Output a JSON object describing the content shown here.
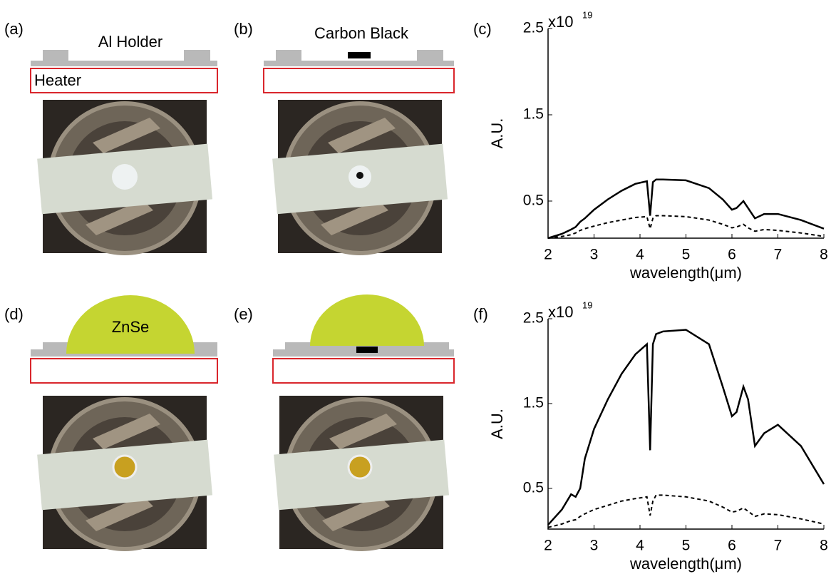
{
  "panels": {
    "a": {
      "label": "(a)",
      "holder": "Al Holder",
      "heater": "Heater"
    },
    "b": {
      "label": "(b)",
      "sample": "Carbon Black"
    },
    "d": {
      "label": "(d)",
      "lens": "ZnSe"
    },
    "e": {
      "label": "(e)"
    }
  },
  "chart_data": [
    {
      "type": "line",
      "panel_label": "(c)",
      "y_multiplier": {
        "base": "x10",
        "exponent": "19"
      },
      "ylabel": "A.U.",
      "xlabel": "wavelength(μm)",
      "x": [
        2,
        2.3,
        2.5,
        2.6,
        2.7,
        2.8,
        3,
        3.3,
        3.6,
        3.9,
        4.15,
        4.22,
        4.28,
        4.35,
        4.5,
        5,
        5.5,
        5.8,
        6,
        6.1,
        6.25,
        6.35,
        6.5,
        6.7,
        7,
        7.5,
        8
      ],
      "series": [
        {
          "color": "#000000",
          "dash": "solid",
          "values": [
            0.07,
            0.12,
            0.17,
            0.2,
            0.26,
            0.3,
            0.4,
            0.52,
            0.62,
            0.7,
            0.73,
            0.33,
            0.72,
            0.75,
            0.75,
            0.74,
            0.65,
            0.52,
            0.4,
            0.42,
            0.5,
            0.42,
            0.3,
            0.35,
            0.35,
            0.28,
            0.18
          ]
        },
        {
          "color": "#000000",
          "dash": "dashed",
          "values": [
            0.07,
            0.09,
            0.11,
            0.13,
            0.16,
            0.18,
            0.21,
            0.25,
            0.28,
            0.31,
            0.32,
            0.18,
            0.3,
            0.33,
            0.33,
            0.32,
            0.28,
            0.23,
            0.19,
            0.2,
            0.23,
            0.19,
            0.15,
            0.17,
            0.16,
            0.13,
            0.09
          ]
        }
      ],
      "xlim": [
        2,
        8
      ],
      "xticks": [
        2,
        3,
        4,
        5,
        6,
        7,
        8
      ],
      "ylim": [
        0.07,
        2.5
      ],
      "yticks": [
        0.5,
        1.5,
        2.5
      ]
    },
    {
      "type": "line",
      "panel_label": "(f)",
      "y_multiplier": {
        "base": "x10",
        "exponent": "19"
      },
      "ylabel": "A.U.",
      "xlabel": "wavelength(μm)",
      "x": [
        2,
        2.3,
        2.5,
        2.6,
        2.7,
        2.8,
        3,
        3.3,
        3.6,
        3.9,
        4.15,
        4.22,
        4.28,
        4.35,
        4.5,
        5,
        5.5,
        5.8,
        6,
        6.1,
        6.25,
        6.35,
        6.5,
        6.7,
        7,
        7.5,
        8
      ],
      "series": [
        {
          "color": "#000000",
          "dash": "solid",
          "values": [
            0.07,
            0.25,
            0.43,
            0.4,
            0.5,
            0.85,
            1.2,
            1.55,
            1.85,
            2.08,
            2.2,
            0.95,
            2.2,
            2.32,
            2.35,
            2.37,
            2.2,
            1.7,
            1.35,
            1.4,
            1.7,
            1.55,
            1.0,
            1.15,
            1.25,
            1.0,
            0.55
          ]
        },
        {
          "color": "#000000",
          "dash": "dashed",
          "values": [
            0.04,
            0.08,
            0.12,
            0.13,
            0.17,
            0.2,
            0.25,
            0.3,
            0.35,
            0.38,
            0.4,
            0.18,
            0.35,
            0.42,
            0.42,
            0.4,
            0.35,
            0.28,
            0.22,
            0.23,
            0.27,
            0.23,
            0.17,
            0.2,
            0.19,
            0.14,
            0.08
          ]
        }
      ],
      "xlim": [
        2,
        8
      ],
      "xticks": [
        2,
        3,
        4,
        5,
        6,
        7,
        8
      ],
      "ylim": [
        0.02,
        2.5
      ],
      "yticks": [
        0.5,
        1.5,
        2.5
      ]
    }
  ]
}
